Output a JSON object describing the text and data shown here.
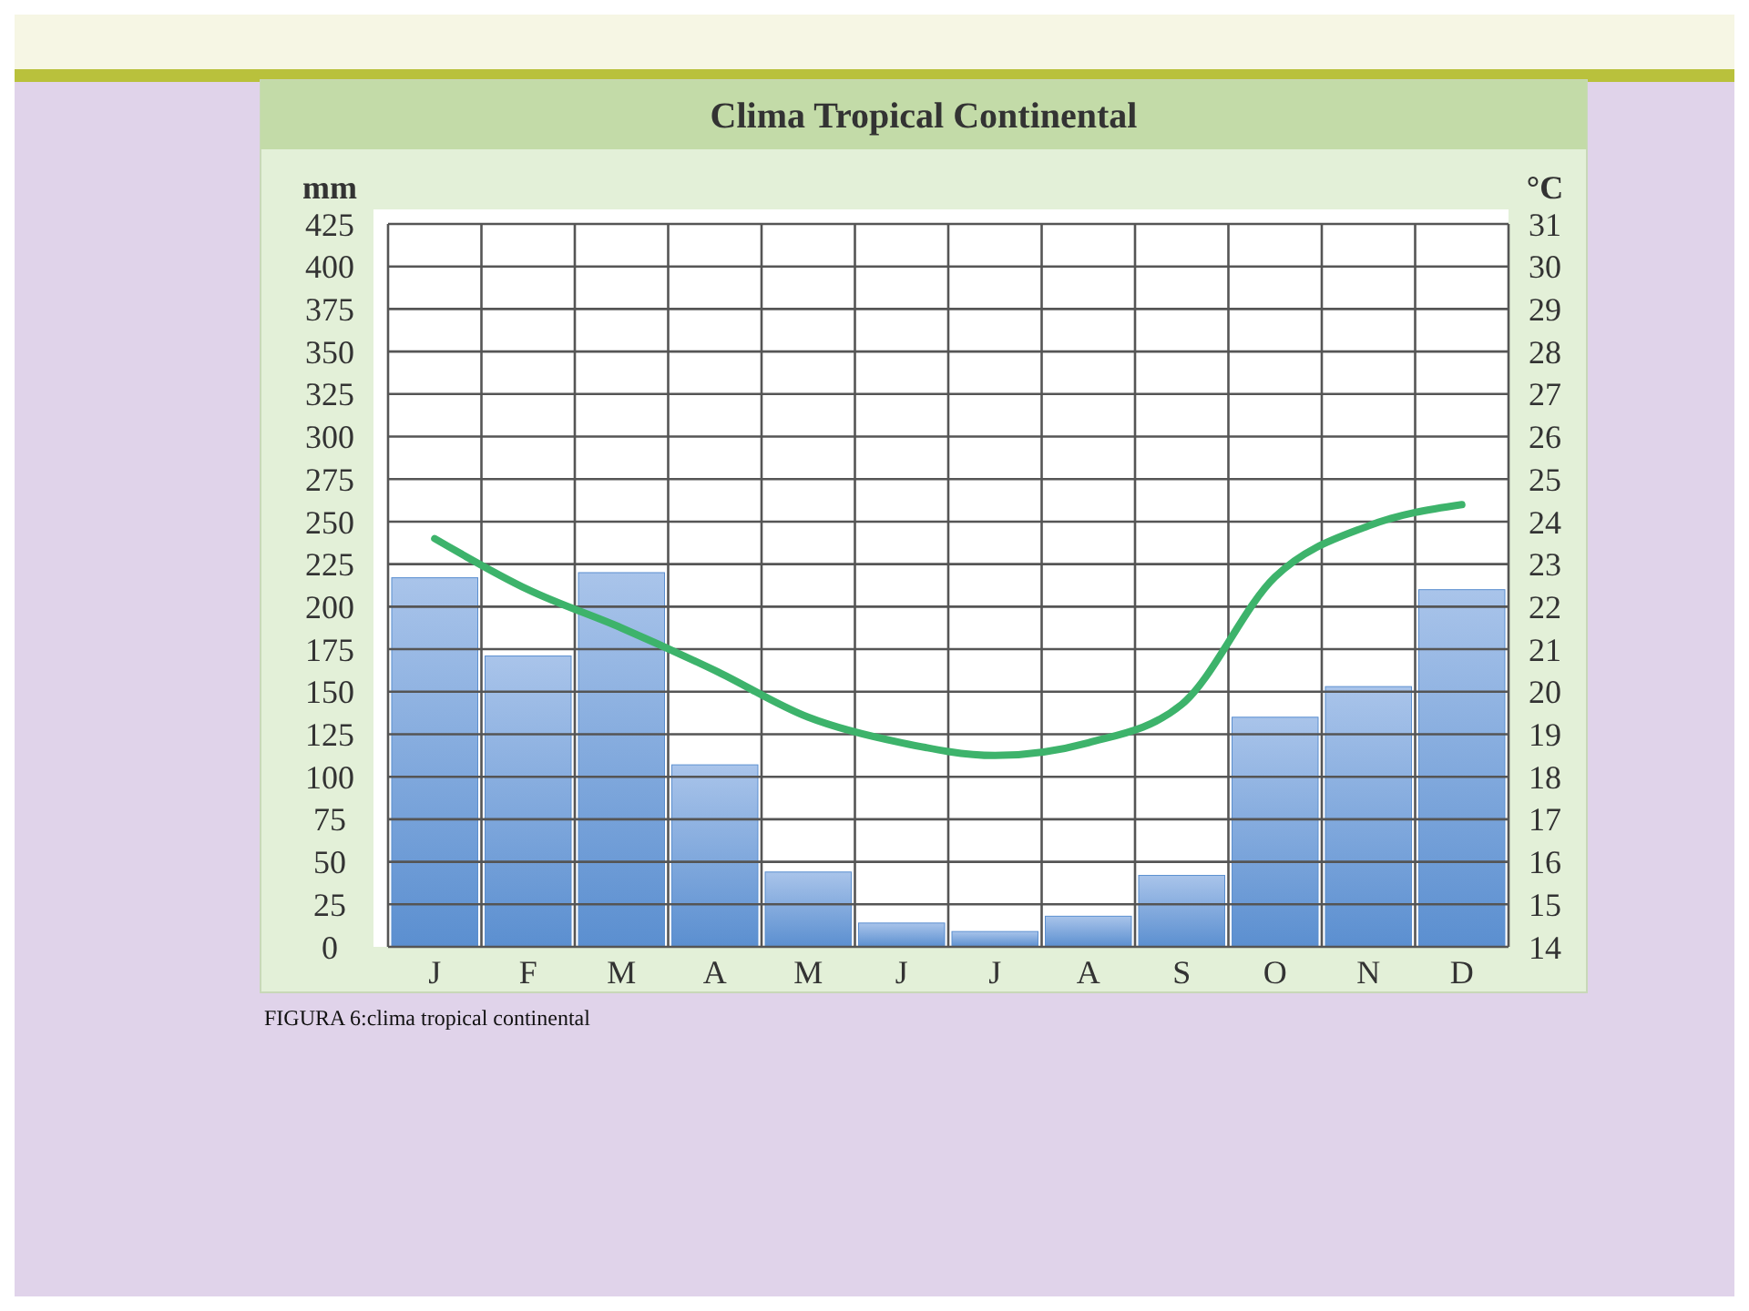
{
  "chart_data": {
    "type": "bar",
    "title": "Clima Tropical Continental",
    "ylabel": "mm",
    "y2label": "°C",
    "categories": [
      "J",
      "F",
      "M",
      "A",
      "M",
      "J",
      "J",
      "A",
      "S",
      "O",
      "N",
      "D"
    ],
    "series": [
      {
        "color": "#5b8fd0",
        "values": [
          217,
          171,
          220,
          107,
          44,
          14,
          9,
          18,
          42,
          135,
          153,
          210
        ]
      },
      {
        "type": "line",
        "axis": "y2",
        "color": "#3db36b",
        "values": [
          23.6,
          22.4,
          21.5,
          20.5,
          19.4,
          18.8,
          18.5,
          18.8,
          19.7,
          22.7,
          23.9,
          24.4
        ]
      }
    ],
    "ylim": [
      0,
      425
    ],
    "yticks": [
      0,
      25,
      50,
      75,
      100,
      125,
      150,
      175,
      200,
      225,
      250,
      275,
      300,
      325,
      350,
      375,
      400,
      425
    ],
    "y2lim": [
      14,
      31
    ],
    "y2ticks": [
      14,
      15,
      16,
      17,
      18,
      19,
      20,
      21,
      22,
      23,
      24,
      25,
      26,
      27,
      28,
      29,
      30,
      31
    ],
    "grid": true,
    "marker": "none",
    "annotations": [
      "FIGURA 6:clima tropical continental"
    ]
  }
}
